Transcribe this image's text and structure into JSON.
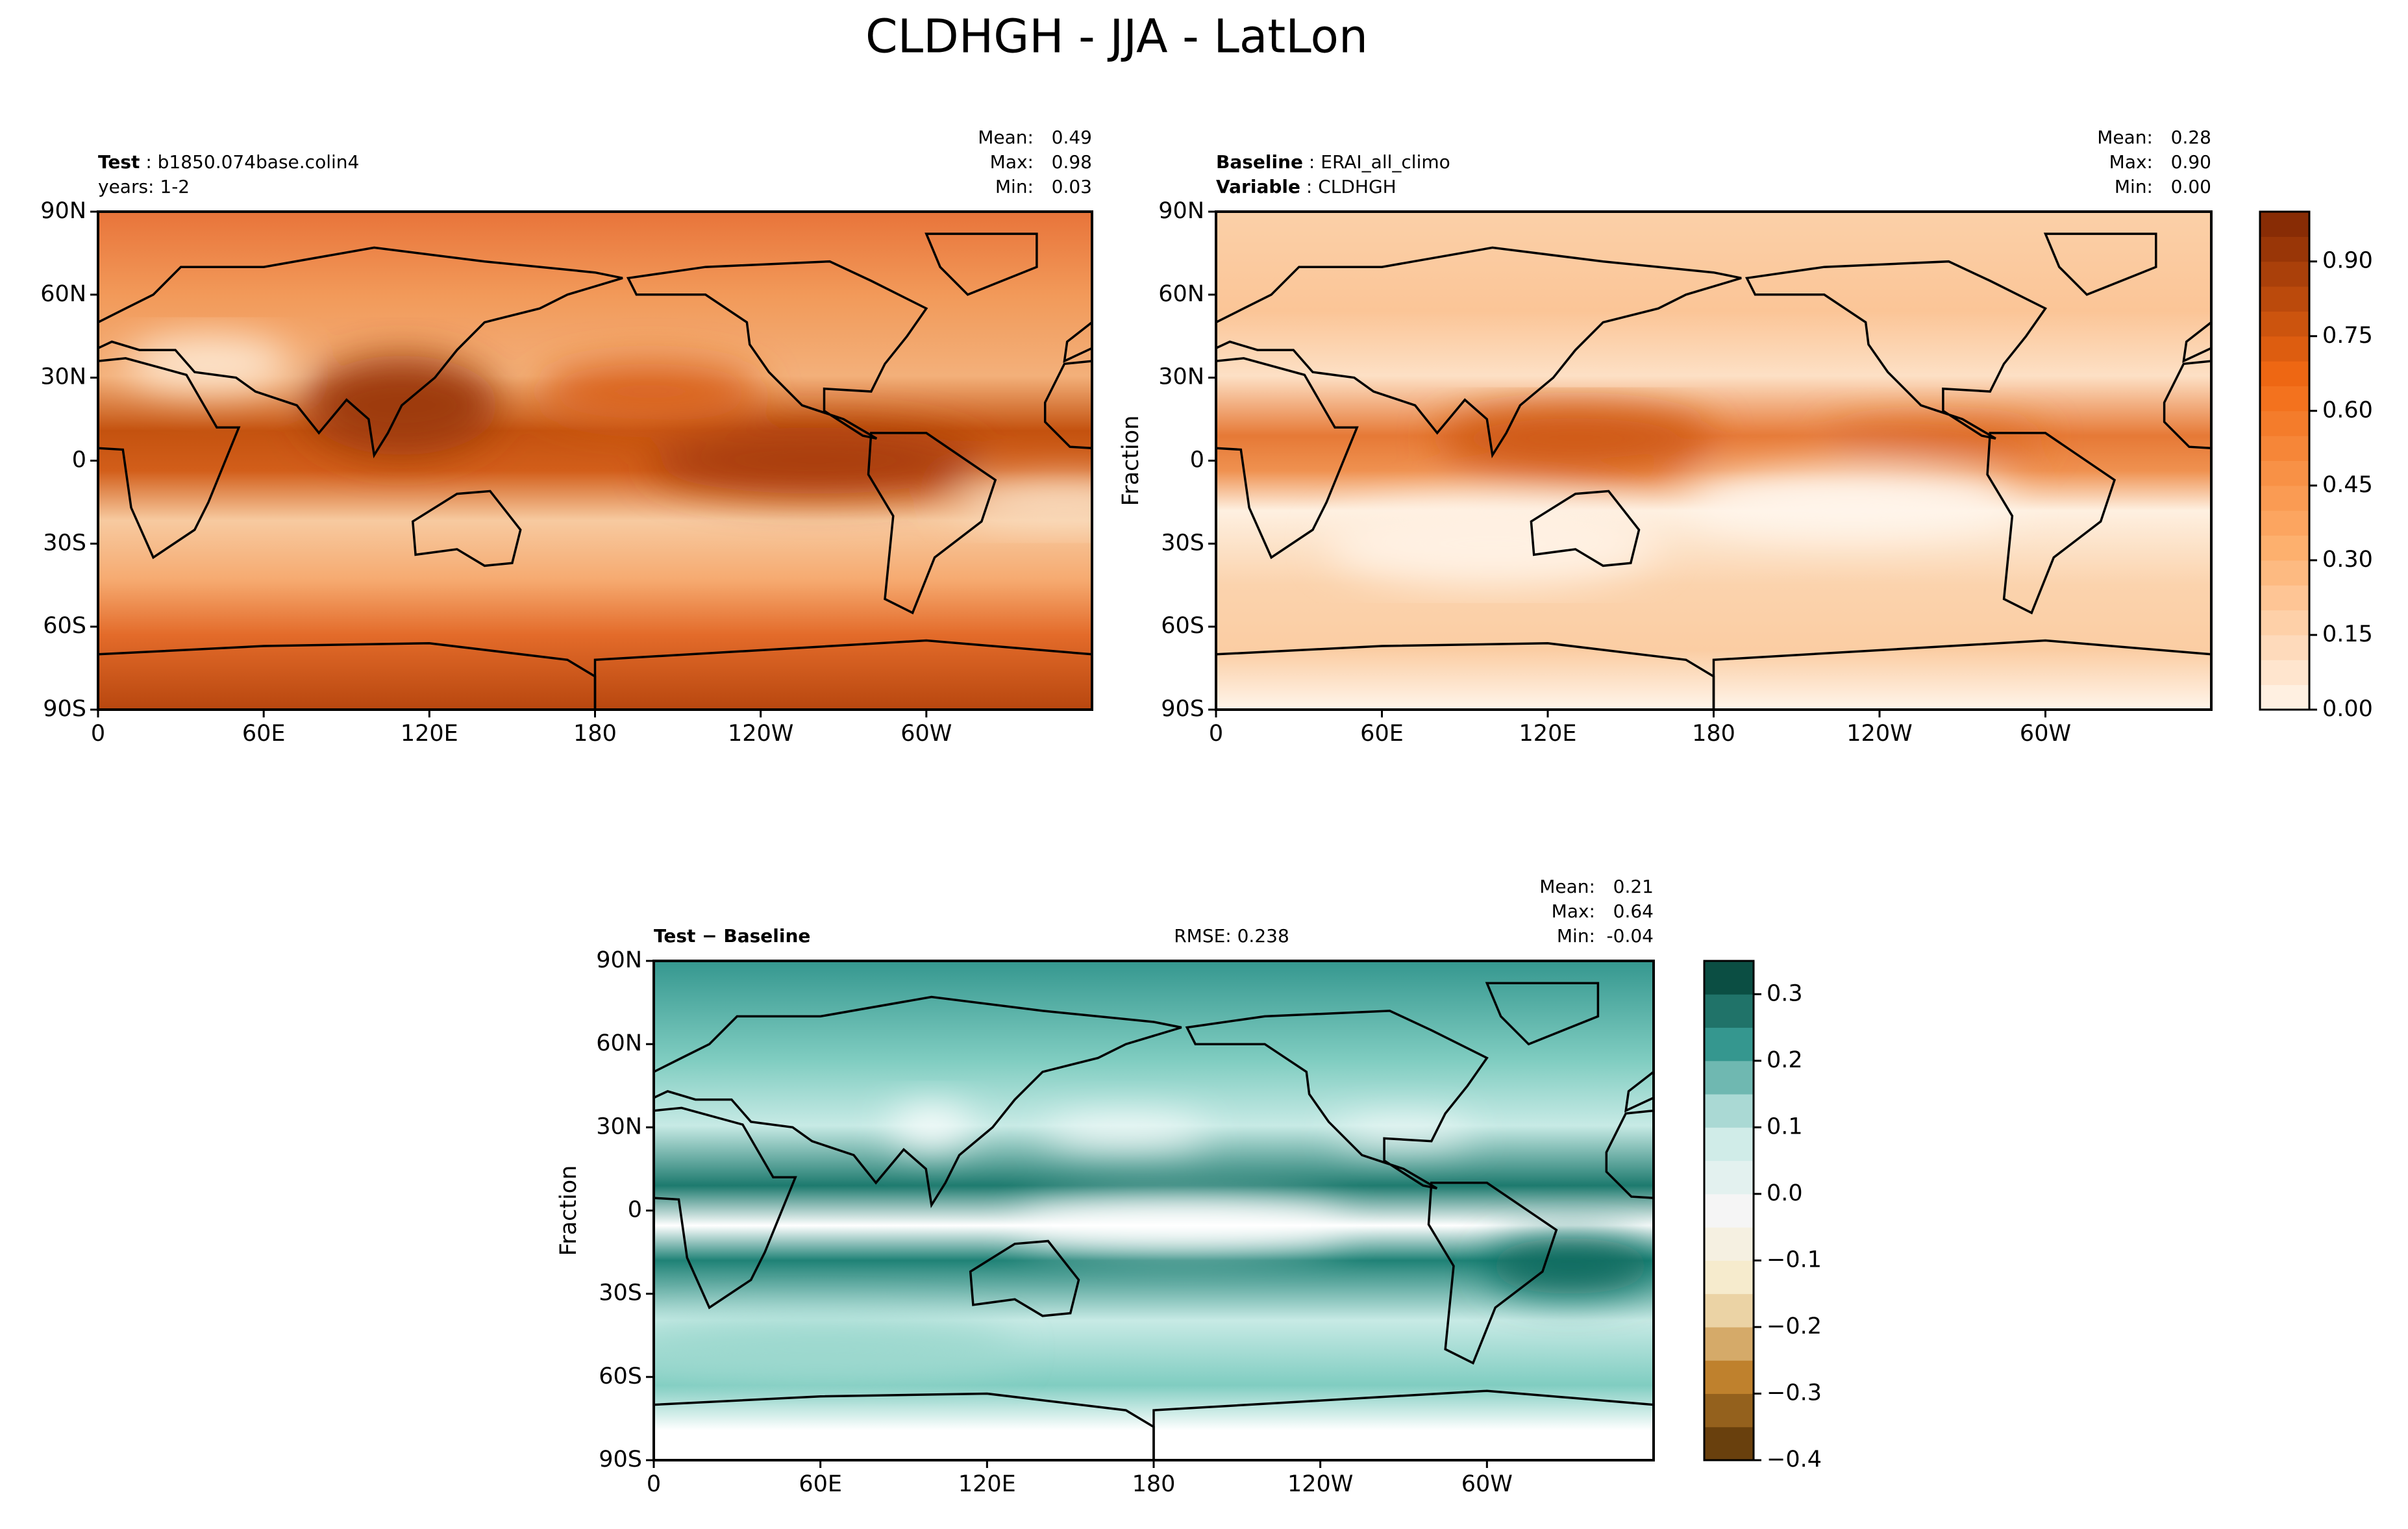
{
  "title": "CLDHGH - JJA - LatLon",
  "chart_data": [
    {
      "type": "contour",
      "header": [
        [
          {
            "text": "Test",
            "bold": true
          },
          {
            "text": " : b1850.074base.colin4"
          }
        ],
        [
          {
            "text": "years: 1-2"
          }
        ]
      ],
      "stats": [
        {
          "label": "Mean:",
          "value": "0.49"
        },
        {
          "label": "Max:",
          "value": "0.98"
        },
        {
          "label": "Min:",
          "value": "0.03"
        }
      ],
      "xlim": [
        0,
        360
      ],
      "xticks": [
        0,
        {
          "value": 60,
          "label": "60E"
        },
        {
          "value": 120,
          "label": "120E"
        },
        180,
        {
          "value": 240,
          "label": "120W"
        },
        {
          "value": 300,
          "label": "60W"
        }
      ],
      "ylim": [
        -90,
        90
      ],
      "yticks": [
        {
          "value": -90,
          "label": "90S"
        },
        {
          "value": -60,
          "label": "60S"
        },
        {
          "value": -30,
          "label": "30S"
        },
        0,
        {
          "value": 30,
          "label": "30N"
        },
        {
          "value": 60,
          "label": "60N"
        },
        {
          "value": 90,
          "label": "90N"
        }
      ]
    },
    {
      "type": "contour",
      "header": [
        [
          {
            "text": "Baseline",
            "bold": true
          },
          {
            "text": " : ERAI_all_climo"
          }
        ],
        [
          {
            "text": "Variable",
            "bold": true
          },
          {
            "text": " : CLDHGH"
          }
        ]
      ],
      "stats": [
        {
          "label": "Mean:",
          "value": "0.28"
        },
        {
          "label": "Max:",
          "value": "0.90"
        },
        {
          "label": "Min:",
          "value": "0.00"
        }
      ],
      "ylabel": "Fraction",
      "xlim": [
        0,
        360
      ],
      "xticks": [
        0,
        {
          "value": 60,
          "label": "60E"
        },
        {
          "value": 120,
          "label": "120E"
        },
        180,
        {
          "value": 240,
          "label": "120W"
        },
        {
          "value": 300,
          "label": "60W"
        }
      ],
      "ylim": [
        -90,
        90
      ],
      "yticks": [
        {
          "value": -90,
          "label": "90S"
        },
        {
          "value": -60,
          "label": "60S"
        },
        {
          "value": -30,
          "label": "30S"
        },
        0,
        {
          "value": 30,
          "label": "30N"
        },
        {
          "value": 60,
          "label": "60N"
        },
        {
          "value": 90,
          "label": "90N"
        }
      ],
      "colorbar": {
        "lim": [
          0,
          1
        ],
        "colors": [
          "#fff5eb",
          "#fdae6b",
          "#f16913",
          "#7f2704"
        ],
        "ticks": [
          {
            "value": 0,
            "label": "0.00"
          },
          0.15,
          {
            "value": 0.3,
            "label": "0.30"
          },
          0.45,
          {
            "value": 0.6,
            "label": "0.60"
          },
          0.75,
          {
            "value": 0.9,
            "label": "0.90"
          }
        ]
      }
    },
    {
      "type": "contour",
      "header": [
        [
          {
            "text": "Test − Baseline",
            "bold": true
          }
        ]
      ],
      "annotation": "RMSE: 0.238",
      "stats": [
        {
          "label": "Mean:",
          "value": "0.21"
        },
        {
          "label": "Max:",
          "value": "0.64"
        },
        {
          "label": "Min:",
          "value": "-0.04"
        }
      ],
      "ylabel": "Fraction",
      "xlim": [
        0,
        360
      ],
      "xticks": [
        0,
        {
          "value": 60,
          "label": "60E"
        },
        {
          "value": 120,
          "label": "120E"
        },
        180,
        {
          "value": 240,
          "label": "120W"
        },
        {
          "value": 300,
          "label": "60W"
        }
      ],
      "ylim": [
        -90,
        90
      ],
      "yticks": [
        {
          "value": -90,
          "label": "90S"
        },
        {
          "value": -60,
          "label": "60S"
        },
        {
          "value": -30,
          "label": "30S"
        },
        0,
        {
          "value": 30,
          "label": "30N"
        },
        {
          "value": 60,
          "label": "60N"
        },
        {
          "value": 90,
          "label": "90N"
        }
      ],
      "colorbar": {
        "lim": [
          -0.4,
          0.35
        ],
        "colors": [
          "#543005",
          "#bf812d",
          "#f6e8c3",
          "#f5f5f5",
          "#c7eae5",
          "#35978f",
          "#003c30"
        ],
        "ticks": [
          {
            "value": -0.4,
            "label": "−0.4"
          },
          {
            "value": -0.3,
            "label": "−0.3"
          },
          {
            "value": -0.2,
            "label": "−0.2"
          },
          {
            "value": -0.1,
            "label": "−0.1"
          },
          {
            "value": 0,
            "label": "0.0"
          },
          0.1,
          0.2,
          0.3
        ]
      }
    }
  ]
}
